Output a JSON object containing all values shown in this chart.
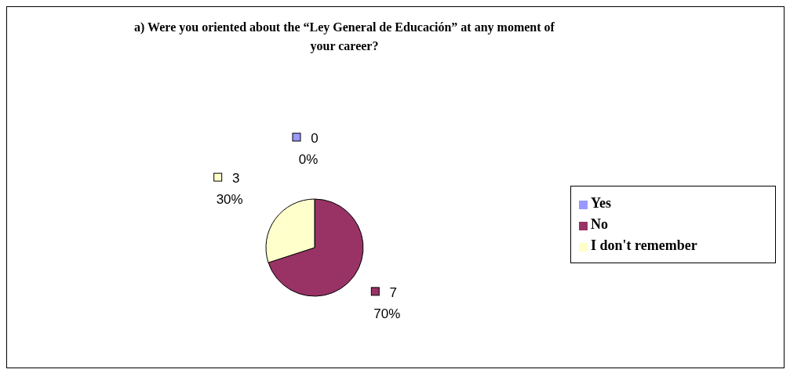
{
  "chart_data": {
    "type": "pie",
    "title": "a) Were you oriented about the “Ley General de Educación” at any moment of your career?",
    "categories": [
      "Yes",
      "No",
      "I don't remember"
    ],
    "values": [
      0,
      7,
      3
    ],
    "colors": [
      "#9999ff",
      "#993366",
      "#ffffcc"
    ],
    "value_labels": [
      "0\n0%",
      "7\n70%",
      "3\n30%"
    ],
    "legend": "right"
  }
}
